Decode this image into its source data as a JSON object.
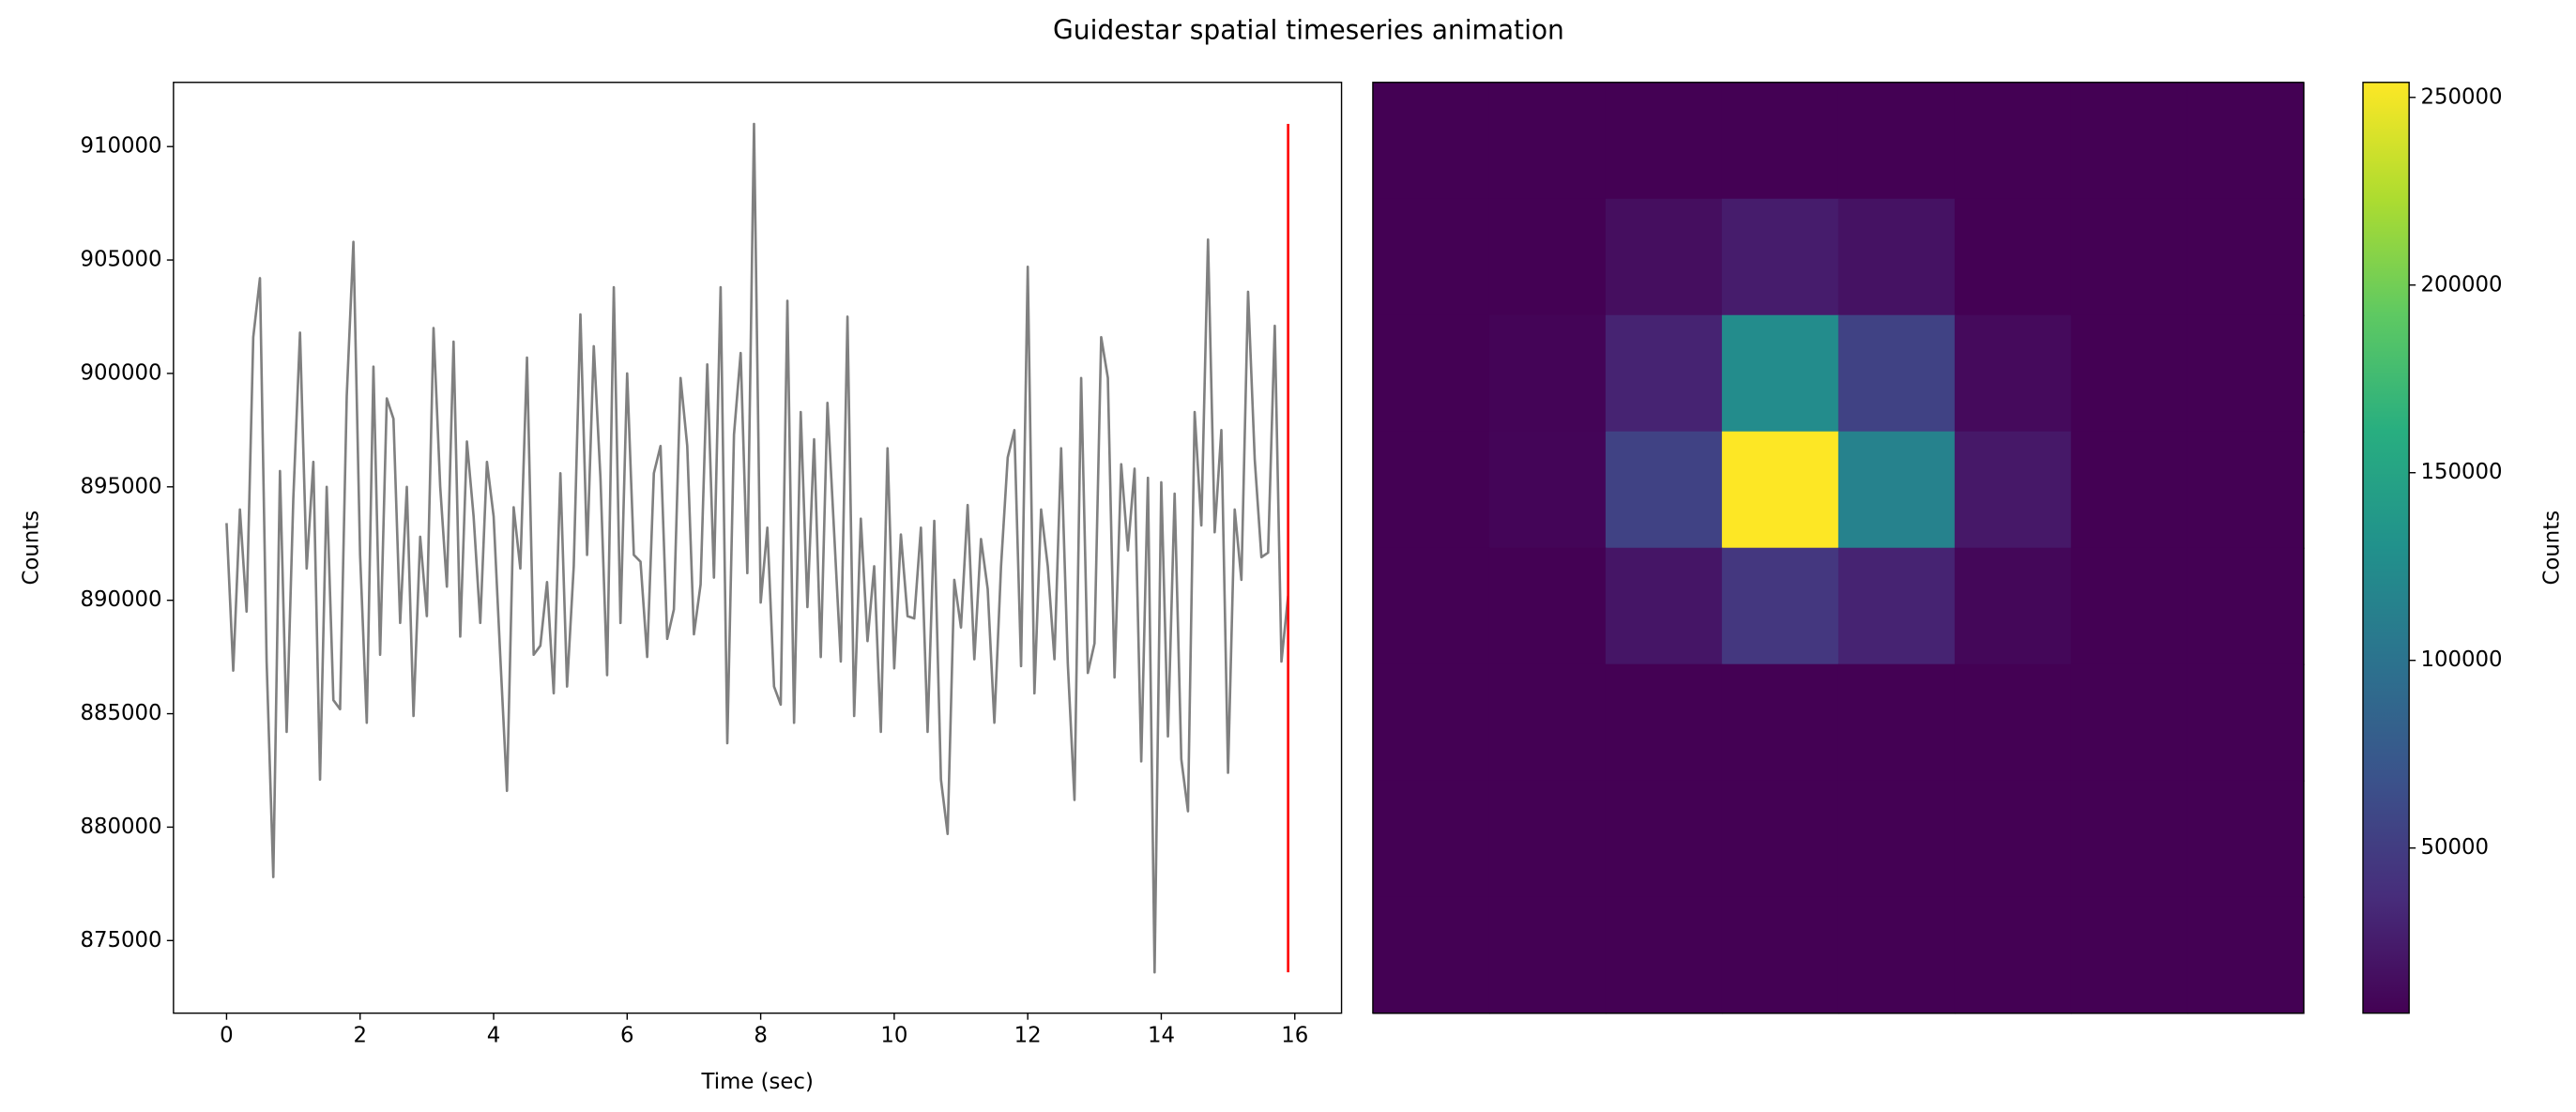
{
  "title": "Guidestar spatial timeseries animation",
  "chart_data": [
    {
      "type": "line",
      "xlabel": "Time (sec)",
      "ylabel": "Counts",
      "x": [
        0,
        0.1,
        0.2,
        0.3,
        0.4,
        0.5,
        0.6,
        0.7,
        0.8,
        0.9,
        1,
        1.1,
        1.2,
        1.3,
        1.4,
        1.5,
        1.6,
        1.7,
        1.8,
        1.9,
        2,
        2.1,
        2.2,
        2.3,
        2.4,
        2.5,
        2.6,
        2.7,
        2.8,
        2.9,
        3,
        3.1,
        3.2,
        3.3,
        3.4,
        3.5,
        3.6,
        3.7,
        3.8,
        3.9,
        4,
        4.1,
        4.2,
        4.3,
        4.4,
        4.5,
        4.6,
        4.7,
        4.8,
        4.9,
        5,
        5.1,
        5.2,
        5.3,
        5.4,
        5.5,
        5.6,
        5.7,
        5.8,
        5.9,
        6,
        6.1,
        6.2,
        6.3,
        6.4,
        6.5,
        6.6,
        6.7,
        6.8,
        6.9,
        7,
        7.1,
        7.2,
        7.3,
        7.4,
        7.5,
        7.6,
        7.7,
        7.8,
        7.9,
        8,
        8.1,
        8.2,
        8.3,
        8.4,
        8.5,
        8.6,
        8.7,
        8.8,
        8.9,
        9,
        9.1,
        9.2,
        9.3,
        9.4,
        9.5,
        9.6,
        9.7,
        9.8,
        9.9,
        10,
        10.1,
        10.2,
        10.3,
        10.4,
        10.5,
        10.6,
        10.7,
        10.8,
        10.9,
        11,
        11.1,
        11.2,
        11.3,
        11.4,
        11.5,
        11.6,
        11.7,
        11.8,
        11.9,
        12,
        12.1,
        12.2,
        12.3,
        12.4,
        12.5,
        12.6,
        12.7,
        12.8,
        12.9,
        13,
        13.1,
        13.2,
        13.3,
        13.4,
        13.5,
        13.6,
        13.7,
        13.8,
        13.9,
        14,
        14.1,
        14.2,
        14.3,
        14.4,
        14.5,
        14.6,
        14.7,
        14.8,
        14.9,
        15,
        15.1,
        15.2,
        15.3,
        15.4,
        15.5,
        15.6,
        15.7,
        15.8,
        15.9
      ],
      "series": [
        {
          "color": "#808080",
          "values": [
            893400,
            886900,
            894000,
            889500,
            901600,
            904200,
            887300,
            877800,
            895700,
            884200,
            894500,
            901800,
            891400,
            896100,
            882100,
            895000,
            885600,
            885200,
            899000,
            905800,
            892000,
            884600,
            900300,
            887600,
            898900,
            898000,
            889000,
            895000,
            884900,
            892800,
            889300,
            902000,
            895000,
            890600,
            901400,
            888400,
            897000,
            893700,
            889000,
            896100,
            893700,
            887500,
            881600,
            894100,
            891400,
            900700,
            887600,
            888000,
            890800,
            885900,
            895600,
            886200,
            891500,
            902600,
            892000,
            901200,
            895400,
            886700,
            903800,
            889000,
            900000,
            892000,
            891700,
            887500,
            895600,
            896800,
            888300,
            889600,
            899800,
            896800,
            888500,
            890700,
            900400,
            891000,
            903800,
            883700,
            897300,
            900900,
            891200,
            911000,
            889900,
            893200,
            886200,
            885400,
            903200,
            884600,
            898300,
            889700,
            897100,
            887500,
            898700,
            893000,
            887300,
            902500,
            884900,
            893600,
            888200,
            891500,
            884200,
            896700,
            887000,
            892900,
            889300,
            889200,
            893200,
            884200,
            893500,
            882100,
            879700,
            890900,
            888800,
            894200,
            887400,
            892700,
            890500,
            884600,
            891500,
            896300,
            897500,
            887100,
            904700,
            885900,
            894000,
            891500,
            887400,
            896700,
            887200,
            881200,
            899800,
            886800,
            888100,
            901600,
            899800,
            886600,
            896000,
            892200,
            895800,
            882900,
            895400,
            873600,
            895200,
            884000,
            894700,
            883000,
            880700,
            898300,
            893300,
            905900,
            893000,
            897500,
            882400,
            894000,
            890900,
            903600,
            896200,
            891900,
            892100,
            902100,
            887300,
            890200
          ]
        }
      ],
      "current_time": 15.9,
      "current_color": "#ff0000",
      "xlim": [
        -0.795,
        16.7
      ],
      "ylim": [
        871800,
        912830
      ],
      "xticks": [
        0,
        2,
        4,
        6,
        8,
        10,
        12,
        14,
        16
      ],
      "yticks": [
        875000,
        880000,
        885000,
        890000,
        895000,
        900000,
        905000,
        910000
      ]
    },
    {
      "type": "heatmap",
      "colormap": "viridis",
      "colorbar_label": "Counts",
      "z": [
        [
          6200,
          6200,
          6200,
          6200,
          6200,
          6200,
          6200,
          6200
        ],
        [
          6200,
          6200,
          15000,
          25000,
          18000,
          6200,
          6200,
          6200
        ],
        [
          6200,
          8000,
          30000,
          125000,
          55000,
          12000,
          6200,
          6200
        ],
        [
          6200,
          9000,
          55000,
          254000,
          115000,
          22000,
          6200,
          6200
        ],
        [
          6200,
          6200,
          20000,
          45000,
          30000,
          10000,
          6200,
          6200
        ],
        [
          6200,
          6200,
          6200,
          6200,
          6200,
          6200,
          6200,
          6200
        ],
        [
          6200,
          6200,
          6200,
          6200,
          6200,
          6200,
          6200,
          6200
        ],
        [
          6200,
          6200,
          6200,
          6200,
          6200,
          6200,
          6200,
          6200
        ]
      ],
      "clim": [
        6000,
        254000
      ],
      "cticks": [
        50000,
        100000,
        150000,
        200000,
        250000
      ]
    }
  ]
}
